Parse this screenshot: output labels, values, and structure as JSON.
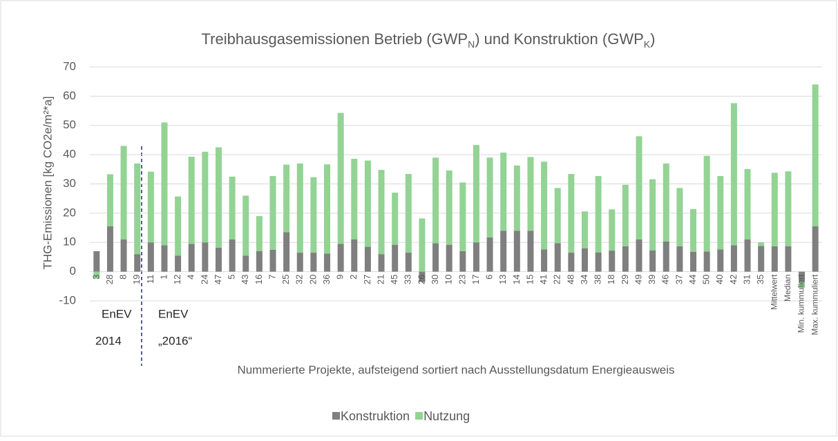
{
  "chart_data": {
    "type": "stacked_bar",
    "title_parts": [
      "Treibhausgasemissionen Betrieb (GWP",
      "N",
      ") und Konstruktion (GWP",
      "K",
      ")"
    ],
    "y_label": "THG-Emissionen [kg CO2e/m²*a]",
    "x_label": "Nummerierte Projekte, aufsteigend sortiert nach Ausstellungsdatum Energieausweis",
    "annotations": [
      "EnEV",
      "2014",
      "EnEV",
      "„2016“"
    ],
    "categories": [
      "3",
      "28",
      "8",
      "19",
      "11",
      "1",
      "12",
      "4",
      "24",
      "47",
      "5",
      "43",
      "16",
      "7",
      "25",
      "32",
      "20",
      "36",
      "9",
      "2",
      "27",
      "21",
      "45",
      "33",
      "26",
      "30",
      "10",
      "23",
      "17",
      "6",
      "13",
      "14",
      "15",
      "41",
      "22",
      "48",
      "34",
      "38",
      "18",
      "29",
      "49",
      "39",
      "46",
      "37",
      "44",
      "50",
      "40",
      "42",
      "31",
      "35",
      "Mittelwert",
      "Median",
      "Min. kummuliert",
      "Max. kummuliert"
    ],
    "series": [
      {
        "name": "Konstruktion",
        "color": "#7f7f7f",
        "values": [
          7,
          15.5,
          11,
          6,
          10,
          9,
          5.5,
          9.5,
          10,
          8.2,
          11,
          5.5,
          7,
          7.5,
          13.5,
          6.5,
          6.5,
          6.2,
          9.5,
          11,
          8.5,
          6,
          9.2,
          6.5,
          -3.5,
          9.7,
          9.2,
          7,
          10,
          11.7,
          14,
          14,
          14,
          7.6,
          9.7,
          6.5,
          8,
          6.6,
          7.2,
          8.7,
          11,
          7.3,
          10.3,
          8.7,
          6.8,
          6.9,
          7.6,
          9,
          11,
          8.8,
          8.7,
          8.7,
          -3.5,
          15.5
        ]
      },
      {
        "name": "Nutzung",
        "color": "#93d394",
        "values": [
          -2.4,
          17.8,
          32,
          31,
          24.2,
          42,
          20.2,
          29.8,
          31,
          34.3,
          21.5,
          20.5,
          12,
          25.2,
          23.1,
          30.5,
          25.8,
          30.5,
          44.8,
          27.6,
          29.5,
          28.8,
          17.8,
          26.9,
          18.2,
          29.3,
          25.4,
          23.5,
          33.3,
          27.3,
          26.7,
          22.3,
          25.2,
          30,
          18.9,
          26.9,
          12.6,
          26.1,
          14.1,
          21,
          35.3,
          24.3,
          26.7,
          19.9,
          14.6,
          32.7,
          25.1,
          48.6,
          24.1,
          1.2,
          25.1,
          25.6,
          -2,
          48.5
        ]
      }
    ],
    "ylim": [
      -10,
      70
    ],
    "yticks": [
      -10,
      0,
      10,
      20,
      30,
      40,
      50,
      60,
      70
    ],
    "grid": true
  }
}
